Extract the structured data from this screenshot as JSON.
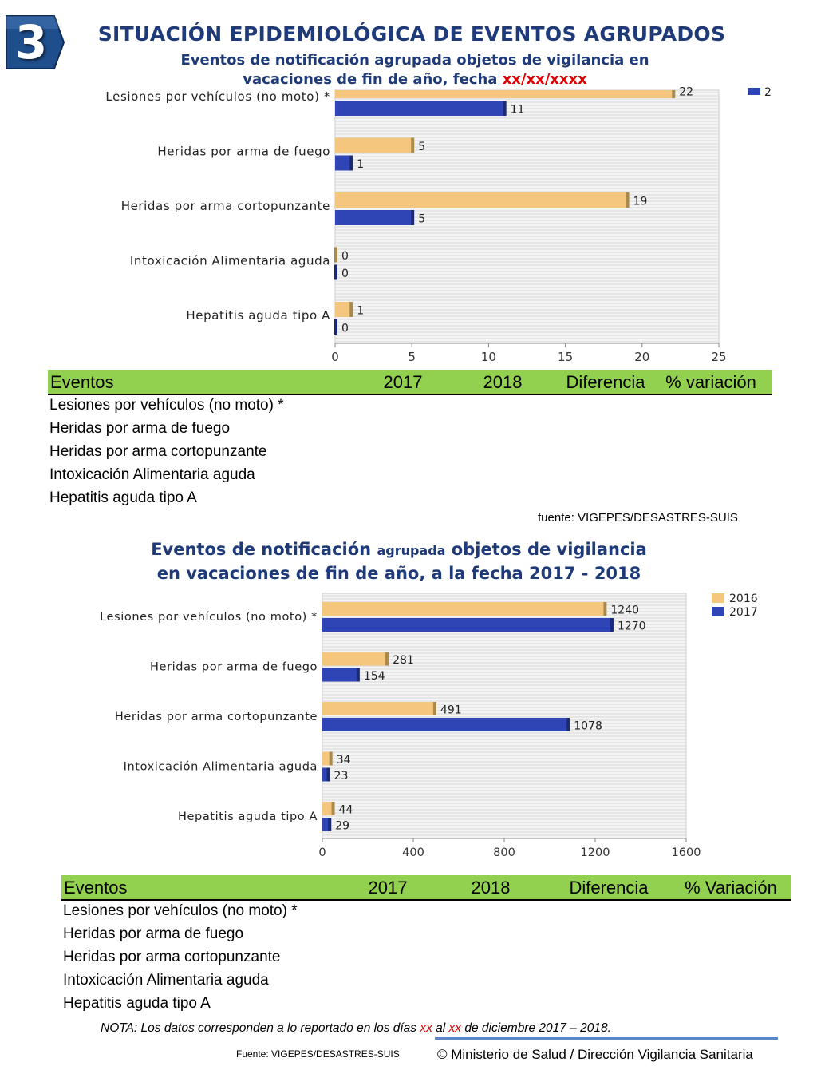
{
  "header": {
    "badge_number": "3",
    "title": "SITUACIÓN EPIDEMIOLÓGICA DE EVENTOS AGRUPADOS",
    "subtitle_line1": "Eventos de notificación agrupada objetos de vigilancia en",
    "subtitle_line2_prefix": "vacaciones de fin de año, fecha ",
    "subtitle_line2_date": "xx/xx/xxxx"
  },
  "chart2_title": {
    "line1_a": "Eventos de notificación ",
    "line1_b": "agrupada",
    "line1_c": " objetos de vigilancia",
    "line2": "en vacaciones de fin de año, a la fecha 2017 - 2018"
  },
  "chart_data": [
    {
      "type": "bar",
      "orientation": "horizontal",
      "title": "",
      "categories": [
        "Lesiones por vehículos (no moto) *",
        "Heridas por arma de fuego",
        "Heridas por arma cortopunzante",
        "Intoxicación Alimentaria aguda",
        "Hepatitis aguda tipo A"
      ],
      "series": [
        {
          "values": [
            22,
            5,
            19,
            0,
            1
          ],
          "color": "#f5c77e"
        },
        {
          "values": [
            11,
            1,
            5,
            0,
            0
          ],
          "color": "#2f45b5"
        }
      ],
      "data_labels": [
        "22",
        "11",
        "5",
        "1",
        "19",
        "5",
        "0",
        "0",
        "1",
        "0"
      ],
      "legend_partial": "2",
      "xlim": [
        0,
        25
      ],
      "xticks": [
        "0",
        "5",
        "10",
        "15",
        "20",
        "25"
      ],
      "grid": true
    },
    {
      "type": "bar",
      "orientation": "horizontal",
      "title": "",
      "categories": [
        "Lesiones por vehículos (no moto) *",
        "Heridas por arma de fuego",
        "Heridas por arma cortopunzante",
        "Intoxicación Alimentaria aguda",
        "Hepatitis aguda tipo A"
      ],
      "series": [
        {
          "name": "2016",
          "values": [
            1240,
            281,
            491,
            34,
            44
          ],
          "color": "#f5c77e"
        },
        {
          "name": "2017",
          "values": [
            1270,
            154,
            1078,
            23,
            29
          ],
          "color": "#2f45b5"
        }
      ],
      "legend": "top-right",
      "xlim": [
        0,
        1600
      ],
      "xticks": [
        "0",
        "400",
        "800",
        "1200",
        "1600"
      ],
      "grid": true
    }
  ],
  "table1": {
    "headers": [
      "Eventos",
      "2017",
      "2018",
      "Diferencia",
      "% variación"
    ],
    "rows": [
      "Lesiones por vehículos (no moto) *",
      "Heridas por arma de fuego",
      "Heridas por arma cortopunzante",
      "Intoxicación Alimentaria aguda",
      "Hepatitis aguda tipo A"
    ],
    "source": "fuente: VIGEPES/DESASTRES-SUIS"
  },
  "table2": {
    "headers": [
      "Eventos",
      "2017",
      "2018",
      "Diferencia",
      "% Variación"
    ],
    "rows": [
      "Lesiones por vehículos (no moto) *",
      "Heridas por arma de fuego",
      "Heridas por arma cortopunzante",
      "Intoxicación Alimentaria aguda",
      "Hepatitis aguda tipo A"
    ]
  },
  "footer": {
    "nota_a": "NOTA: Los datos corresponden a lo reportado en los días ",
    "nota_xx1": "xx",
    "nota_b": " al ",
    "nota_xx2": "xx",
    "nota_c": "  de diciembre 2017 – 2018.",
    "source": "Fuente: VIGEPES/DESASTRES-SUIS",
    "copyright": "© Ministerio de Salud / Dirección Vigilancia Sanitaria"
  }
}
